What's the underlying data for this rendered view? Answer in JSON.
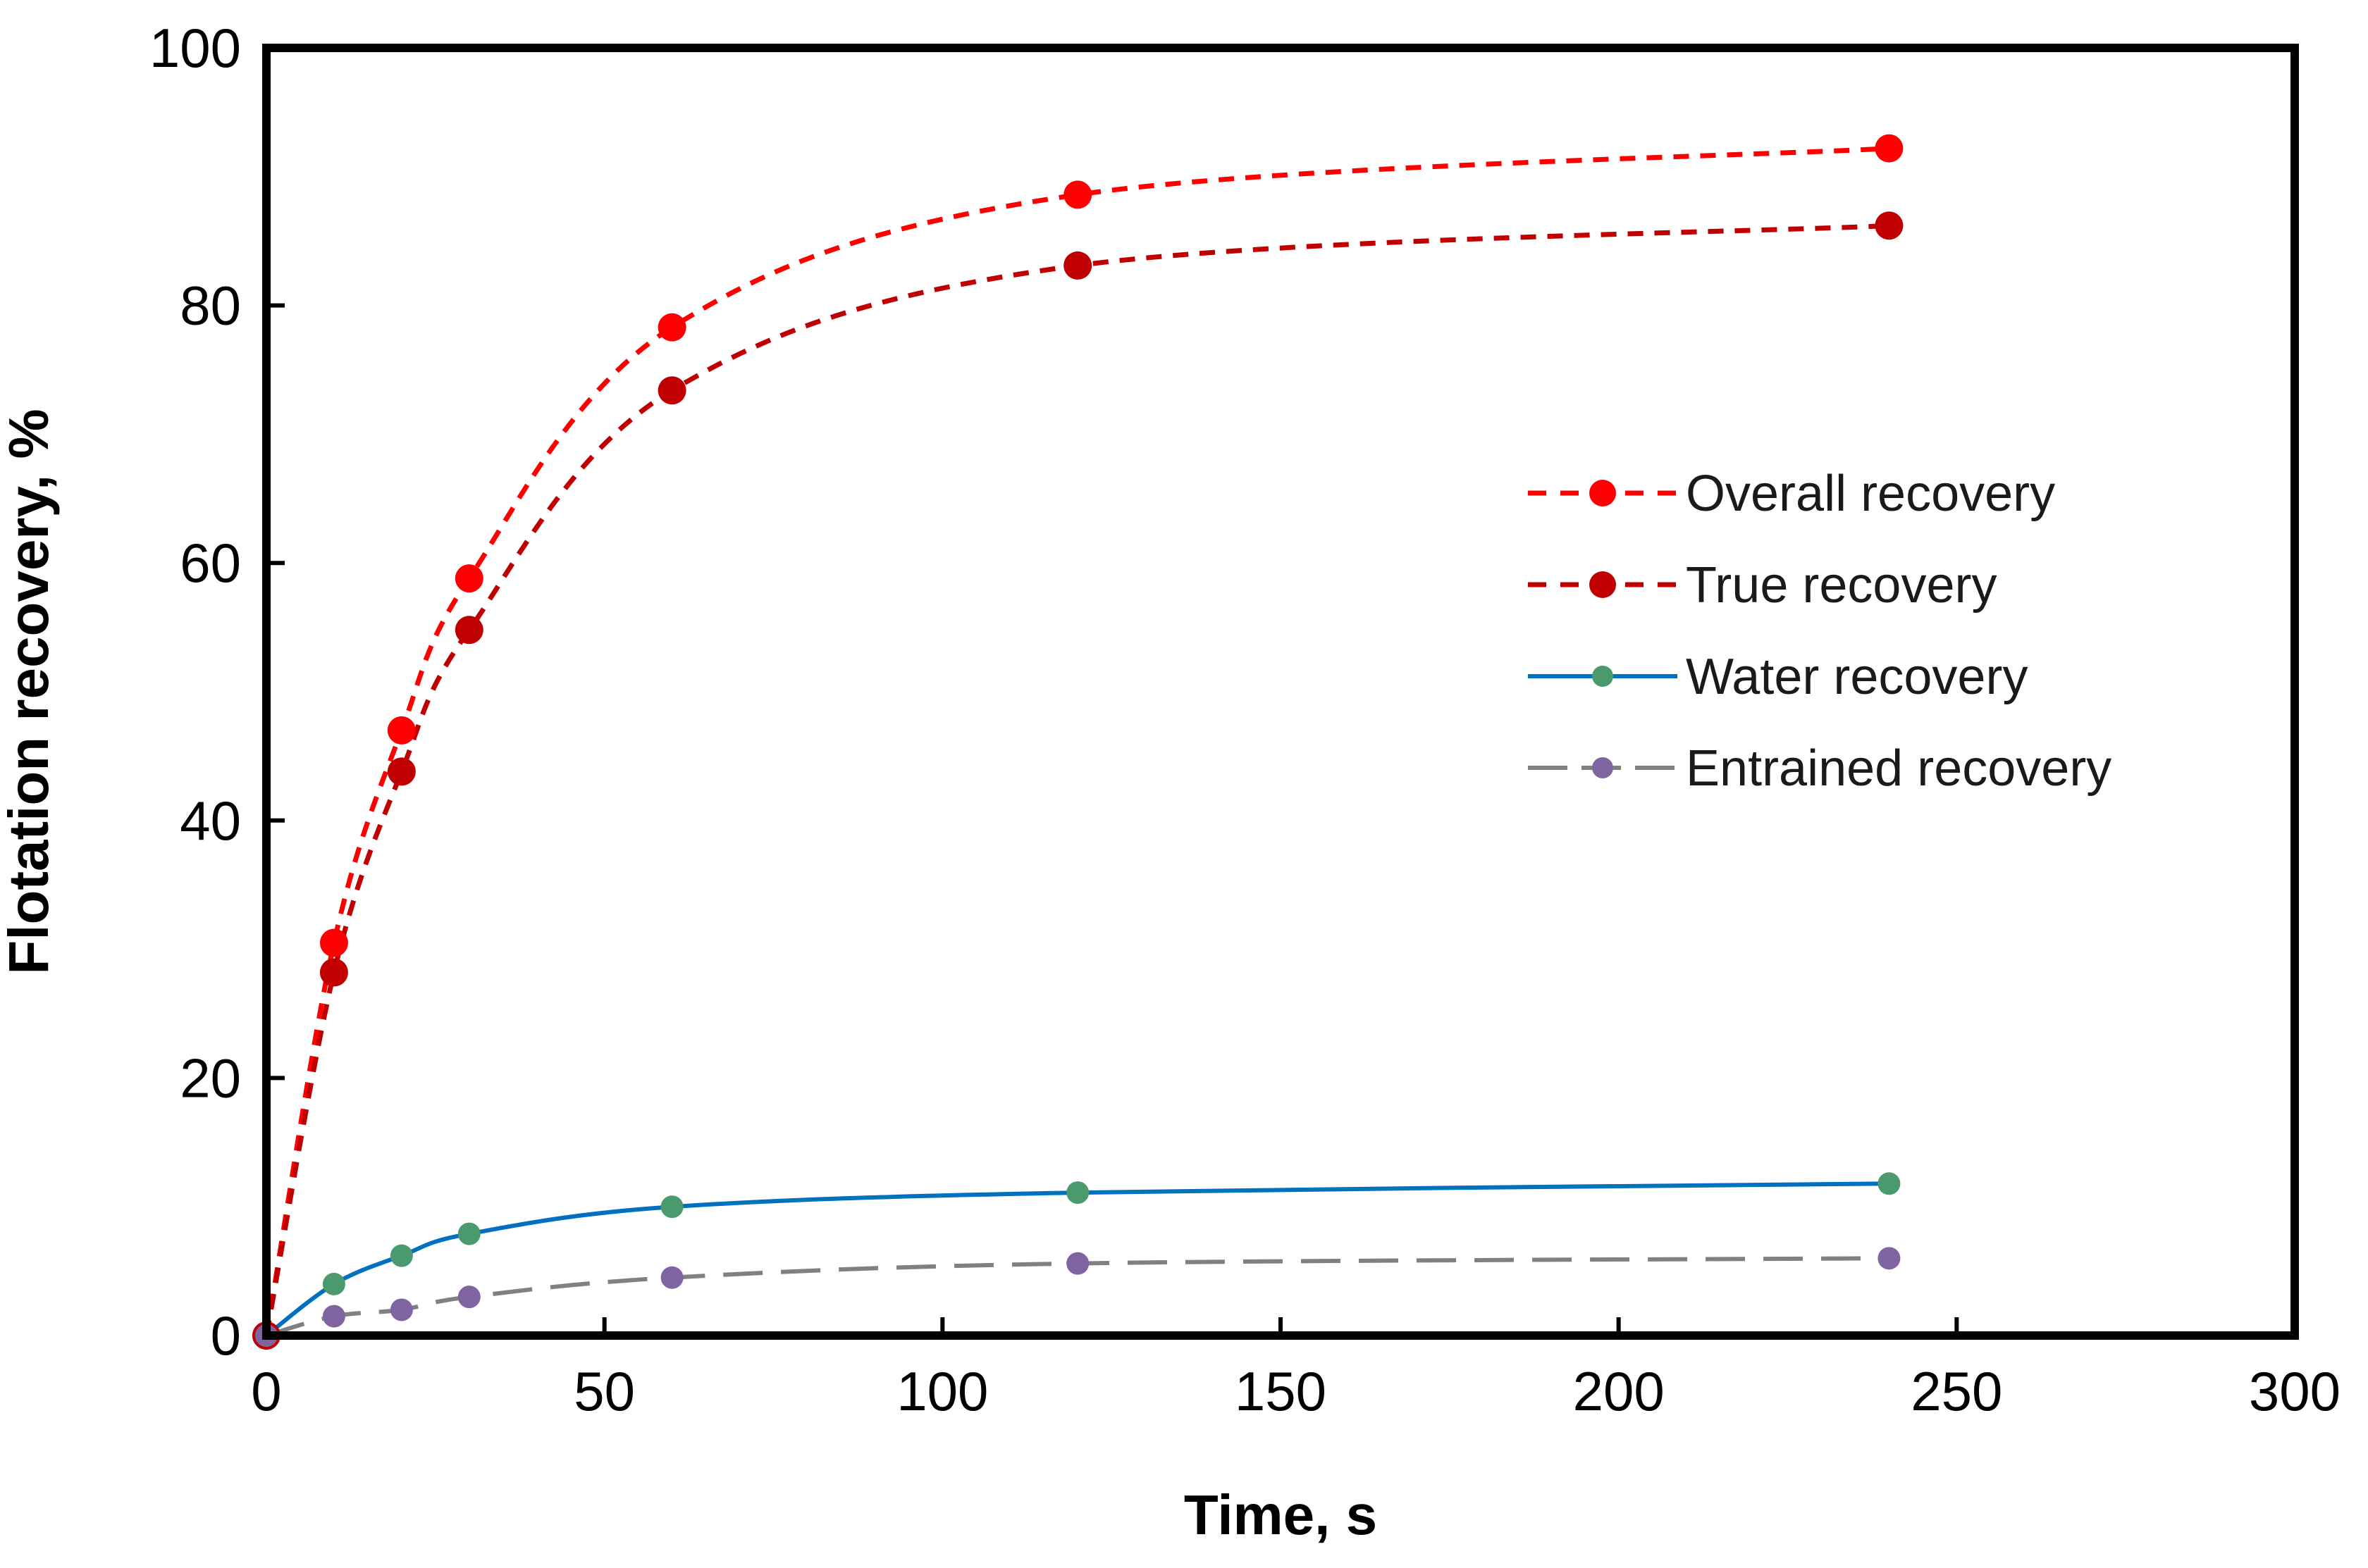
{
  "chart_data": {
    "type": "line",
    "title": "",
    "xlabel": "Time, s",
    "ylabel": "Flotation recovery, %",
    "xlim": [
      0,
      300
    ],
    "ylim": [
      0,
      100
    ],
    "xticks": [
      0,
      50,
      100,
      150,
      200,
      250,
      300
    ],
    "yticks": [
      0,
      20,
      40,
      60,
      80,
      100
    ],
    "xtick_labels": [
      "0",
      "50",
      "100",
      "150",
      "200",
      "250",
      "300"
    ],
    "ytick_labels": [
      "0",
      "20",
      "40",
      "60",
      "80",
      "100"
    ],
    "grid": false,
    "legend_position": "center-right",
    "x": [
      0,
      10,
      20,
      30,
      60,
      120,
      240
    ],
    "series": [
      {
        "name": "Overall recovery",
        "values": [
          0,
          30.5,
          47,
          58.8,
          78.3,
          88.6,
          92.2
        ],
        "color": "#ff0000",
        "marker_color": "#ff0000",
        "line_style": "dashed"
      },
      {
        "name": "True recovery",
        "values": [
          0,
          28.2,
          43.8,
          54.8,
          73.4,
          83.1,
          86.2
        ],
        "color": "#c00000",
        "marker_color": "#c00000",
        "line_style": "dashed"
      },
      {
        "name": "Water recovery",
        "values": [
          0,
          4,
          6.2,
          7.9,
          10,
          11.1,
          11.8
        ],
        "color": "#0070c0",
        "marker_color": "#4a9a6e",
        "line_style": "solid"
      },
      {
        "name": "Entrained recovery",
        "values": [
          0,
          1.5,
          2,
          3,
          4.5,
          5.6,
          6
        ],
        "color": "#808080",
        "marker_color": "#8064a2",
        "line_style": "long-dash"
      }
    ]
  }
}
